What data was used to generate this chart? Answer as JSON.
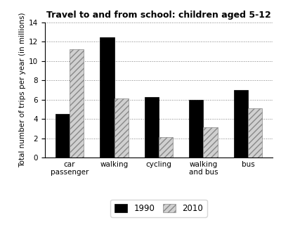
{
  "title": "Travel to and from school: children aged 5-12",
  "ylabel": "Total number of trips per year (in millions)",
  "categories": [
    "car\npassenger",
    "walking",
    "cycling",
    "walking\nand bus",
    "bus"
  ],
  "values_1990": [
    4.5,
    12.5,
    6.3,
    6.0,
    7.0
  ],
  "values_2010": [
    11.25,
    6.1,
    2.1,
    3.1,
    5.1
  ],
  "color_1990": "#000000",
  "color_2010": "#d0d0d0",
  "hatch_2010": "////",
  "ylim": [
    0,
    14
  ],
  "yticks": [
    0,
    2,
    4,
    6,
    8,
    10,
    12,
    14
  ],
  "legend_labels": [
    "1990",
    "2010"
  ],
  "bar_width": 0.32,
  "figsize": [
    4.0,
    3.2
  ],
  "dpi": 100,
  "title_fontsize": 9,
  "axis_label_fontsize": 7.5,
  "tick_fontsize": 7.5,
  "legend_fontsize": 8.5
}
